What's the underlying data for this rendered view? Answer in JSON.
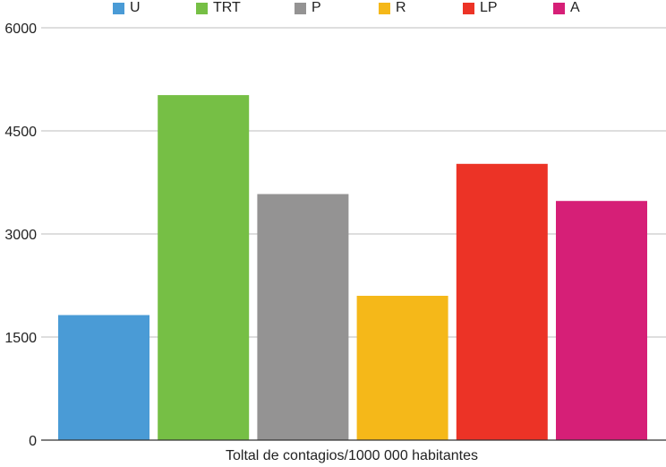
{
  "chart_data": {
    "type": "bar",
    "title": "",
    "xlabel": "Toltal de contagios/1000 000 habitantes",
    "ylabel": "",
    "ylim": [
      0,
      6000
    ],
    "yticks": [
      "0",
      "1500",
      "3000",
      "4500",
      "6000"
    ],
    "grid": true,
    "legend_position": "top",
    "categories": [
      "U",
      "TRT",
      "P",
      "R",
      "LP",
      "A"
    ],
    "values": [
      1820,
      5020,
      3580,
      2100,
      4020,
      3480
    ],
    "colors": [
      "#4a9bd6",
      "#76bf45",
      "#949393",
      "#f5b819",
      "#ec3326",
      "#d61f77"
    ]
  }
}
